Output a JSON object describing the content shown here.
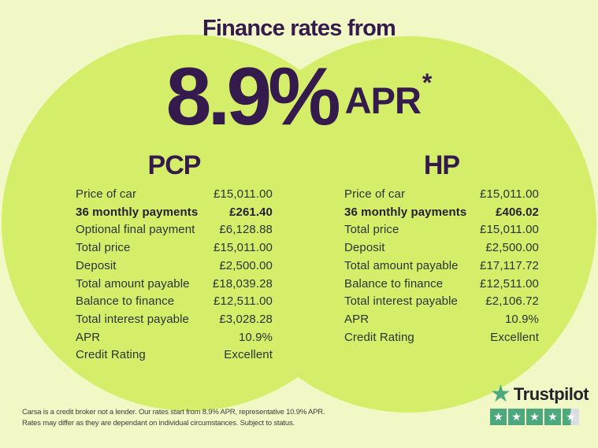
{
  "title": "Finance rates from",
  "rate": {
    "value": "8.9%",
    "suffix": "APR",
    "asterisk": "*"
  },
  "plans": [
    {
      "name": "PCP",
      "rows": [
        {
          "label": "Price of car",
          "value": "£15,011.00",
          "bold": false
        },
        {
          "label": "36 monthly payments",
          "value": "£261.40",
          "bold": true
        },
        {
          "label": "Optional final payment",
          "value": "£6,128.88",
          "bold": false
        },
        {
          "label": "Total price",
          "value": "£15,011.00",
          "bold": false
        },
        {
          "label": "Deposit",
          "value": "£2,500.00",
          "bold": false
        },
        {
          "label": "Total amount payable",
          "value": "£18,039.28",
          "bold": false
        },
        {
          "label": "Balance to finance",
          "value": "£12,511.00",
          "bold": false
        },
        {
          "label": "Total interest payable",
          "value": "£3,028.28",
          "bold": false
        },
        {
          "label": "APR",
          "value": "10.9%",
          "bold": false
        },
        {
          "label": "Credit Rating",
          "value": "Excellent",
          "bold": false
        }
      ]
    },
    {
      "name": "HP",
      "rows": [
        {
          "label": "Price of car",
          "value": "£15,011.00",
          "bold": false
        },
        {
          "label": "36 monthly payments",
          "value": "£406.02",
          "bold": true
        },
        {
          "label": "Total price",
          "value": "£15,011.00",
          "bold": false
        },
        {
          "label": "Deposit",
          "value": "£2,500.00",
          "bold": false
        },
        {
          "label": "Total amount payable",
          "value": "£17,117.72",
          "bold": false
        },
        {
          "label": "Balance to finance",
          "value": "£12,511.00",
          "bold": false
        },
        {
          "label": "Total interest payable",
          "value": "£2,106.72",
          "bold": false
        },
        {
          "label": "APR",
          "value": "10.9%",
          "bold": false
        },
        {
          "label": "Credit Rating",
          "value": "Excellent",
          "bold": false
        }
      ]
    }
  ],
  "disclaimer": {
    "line1": "Carsa is a credit broker not a lender. Our rates start from 8.9% APR, representative 10.9% APR.",
    "line2": "Rates may differ as they are dependant on individual circumstances. Subject to status."
  },
  "trustpilot": {
    "brand": "Trustpilot",
    "logo_star_icon": "★",
    "star_icon": "★",
    "rating_display": "4.5 of 5",
    "stars": [
      "full",
      "full",
      "full",
      "full",
      "half"
    ]
  },
  "colors": {
    "background": "#F1F8C6",
    "circle": "#D5EE6A",
    "purple": "#341A4D",
    "text": "#2E3230",
    "trustpilot_green": "#4CA87D",
    "trustpilot_gray": "#DADDE4",
    "trustpilot_text": "#23232B"
  }
}
